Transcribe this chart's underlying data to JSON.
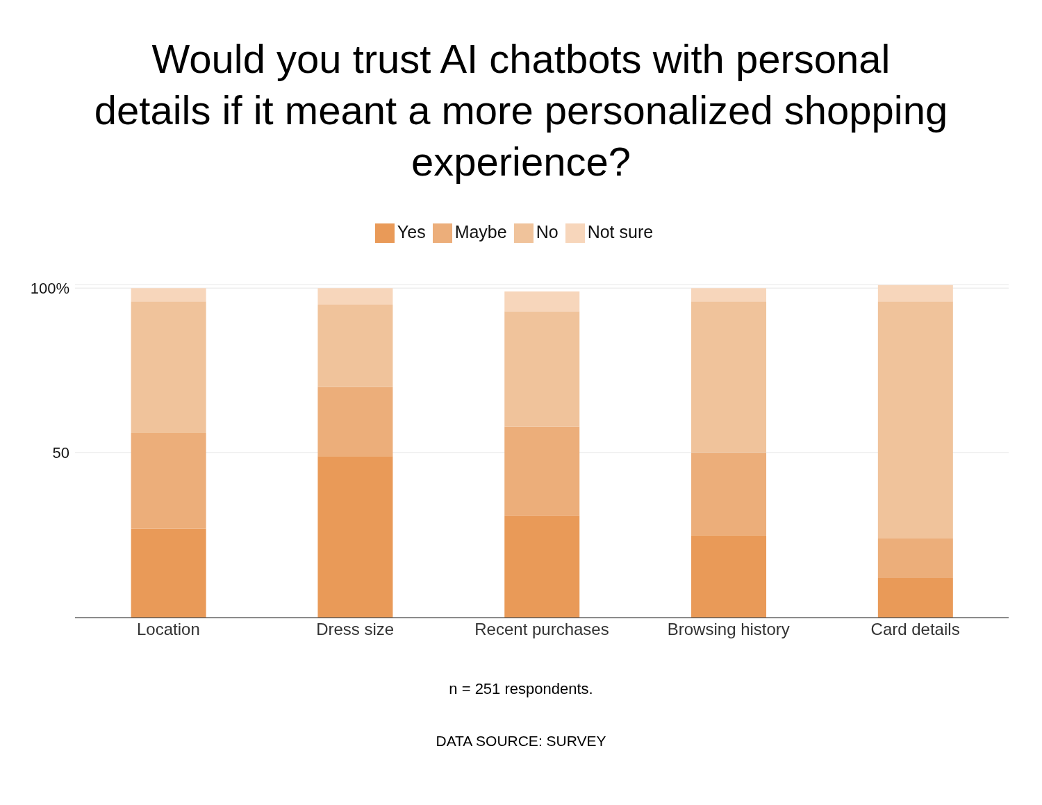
{
  "chart_data": {
    "type": "bar",
    "title": "Would you trust AI chatbots with personal details if it meant a more personalized shopping experience?",
    "categories": [
      "Location",
      "Dress size",
      "Recent purchases",
      "Browsing history",
      "Card details"
    ],
    "series": [
      {
        "name": "Yes",
        "color": "#e99a58",
        "values": [
          27,
          49,
          31,
          25,
          12
        ]
      },
      {
        "name": "Maybe",
        "color": "#ecae7a",
        "values": [
          29,
          21,
          27,
          25,
          12
        ]
      },
      {
        "name": "No",
        "color": "#f0c39b",
        "values": [
          40,
          25,
          35,
          46,
          72
        ]
      },
      {
        "name": "Not sure",
        "color": "#f7d6bb",
        "values": [
          4,
          5,
          6,
          4,
          5
        ]
      }
    ],
    "stacked": true,
    "ylim": [
      0,
      101
    ],
    "yticks": [
      50,
      {
        "value": 100,
        "label": "100%"
      }
    ],
    "grid": "y",
    "legend": "top",
    "annotations": [
      "n = 251 respondents.",
      "DATA SOURCE: SURVEY"
    ]
  }
}
